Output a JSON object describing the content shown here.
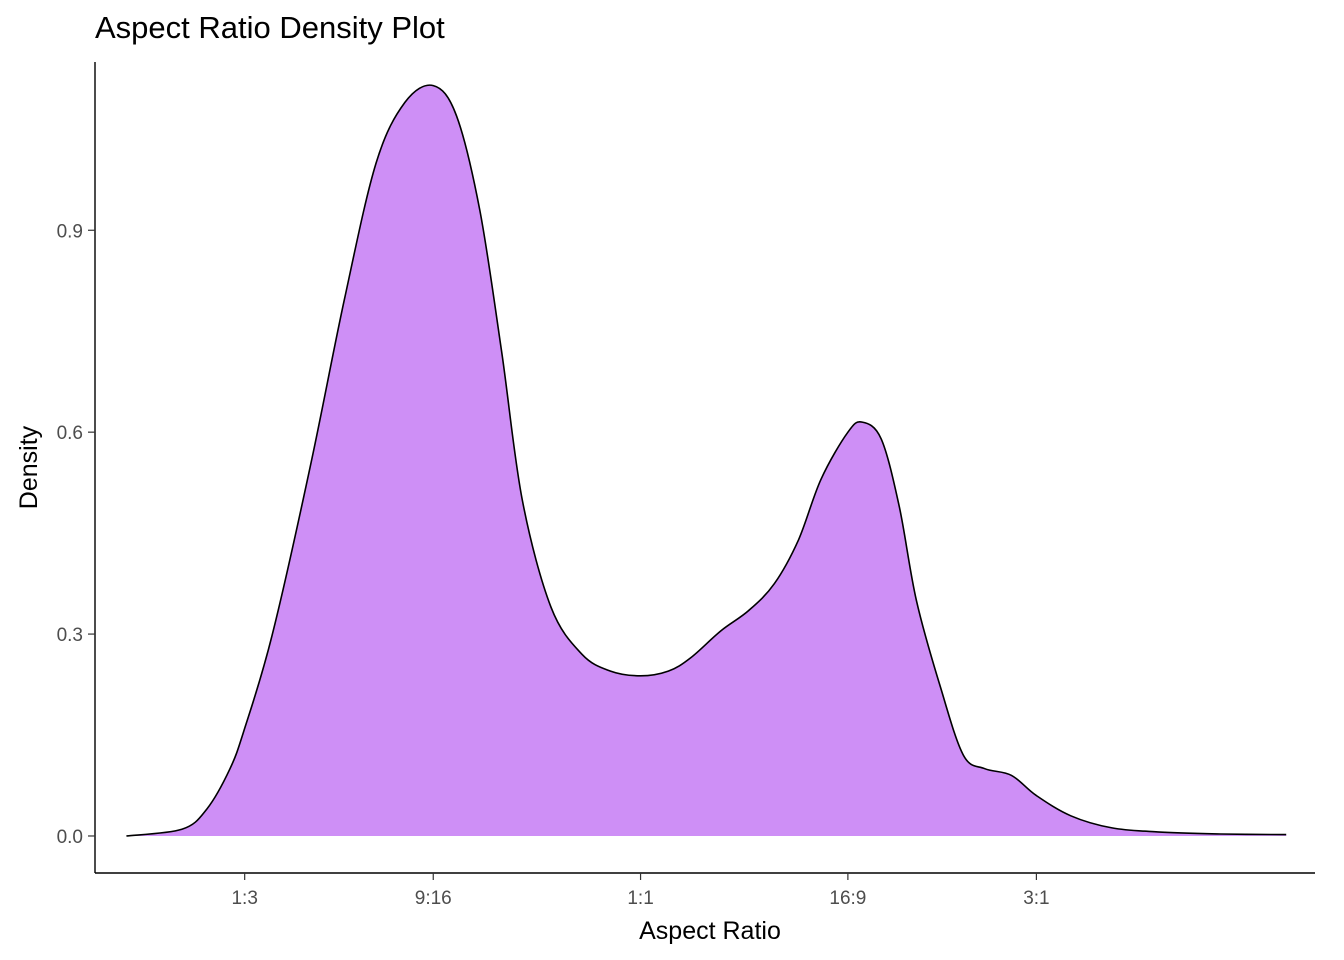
{
  "chart_data": {
    "type": "area",
    "title": "Aspect Ratio Density Plot",
    "xlabel": "Aspect Ratio",
    "ylabel": "Density",
    "x_scale": "log",
    "grid": false,
    "legend": "none",
    "fill_color": "#CE8FF6",
    "line_color": "#000000",
    "xlim": [
      0.22,
      6.5
    ],
    "ylim": [
      -0.055,
      1.15
    ],
    "x_ticks": [
      {
        "value": 0.3333,
        "label": "1:3"
      },
      {
        "value": 0.5625,
        "label": "9:16"
      },
      {
        "value": 1.0,
        "label": "1:1"
      },
      {
        "value": 1.7778,
        "label": "16:9"
      },
      {
        "value": 3.0,
        "label": "3:1"
      }
    ],
    "y_ticks": [
      {
        "value": 0.0,
        "label": "0.0"
      },
      {
        "value": 0.3,
        "label": "0.3"
      },
      {
        "value": 0.6,
        "label": "0.6"
      },
      {
        "value": 0.9,
        "label": "0.9"
      }
    ],
    "series": [
      {
        "x": [
          0.24,
          0.28,
          0.3,
          0.32,
          0.3333,
          0.36,
          0.4,
          0.44,
          0.48,
          0.52,
          0.5625,
          0.6,
          0.64,
          0.68,
          0.72,
          0.78,
          0.85,
          0.92,
          1.0,
          1.08,
          1.15,
          1.25,
          1.35,
          1.45,
          1.55,
          1.65,
          1.7778,
          1.85,
          1.95,
          2.05,
          2.15,
          2.3,
          2.45,
          2.6,
          2.8,
          3.0,
          3.3,
          3.7,
          4.2,
          5.0,
          6.0
        ],
        "y": [
          0.0,
          0.01,
          0.04,
          0.1,
          0.16,
          0.3,
          0.55,
          0.8,
          1.0,
          1.09,
          1.115,
          1.07,
          0.93,
          0.72,
          0.5,
          0.34,
          0.27,
          0.245,
          0.238,
          0.245,
          0.265,
          0.305,
          0.335,
          0.375,
          0.44,
          0.53,
          0.6,
          0.615,
          0.59,
          0.49,
          0.35,
          0.22,
          0.12,
          0.1,
          0.09,
          0.06,
          0.03,
          0.012,
          0.006,
          0.003,
          0.002
        ]
      }
    ]
  }
}
